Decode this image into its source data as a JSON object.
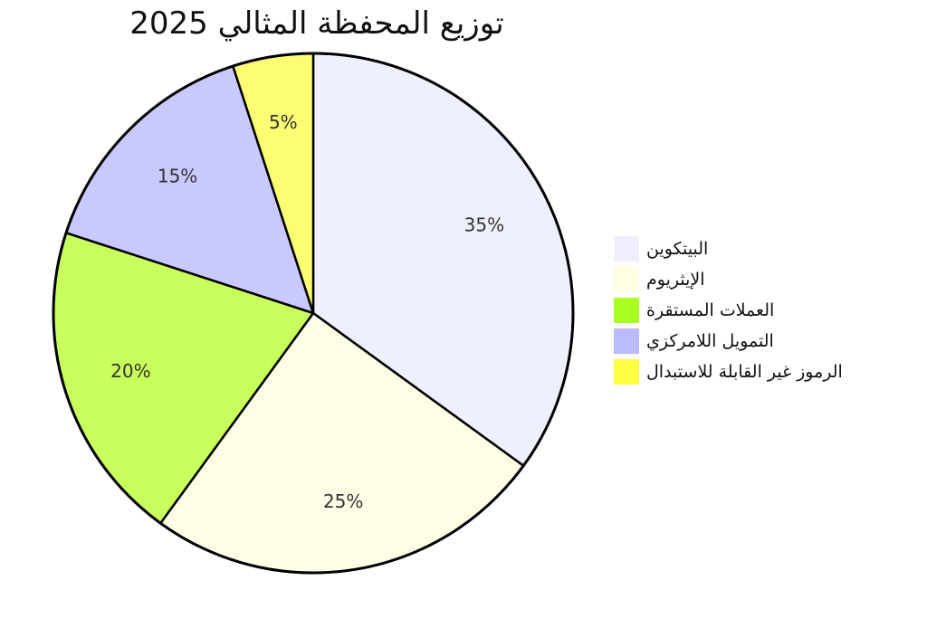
{
  "chart_data": {
    "type": "pie",
    "title": "توزيع المحفظة المثالي 2025",
    "categories": [
      "البيتكوين",
      "الإيثريوم",
      "العملات المستقرة",
      "التمويل اللامركزي",
      "الرموز غير القابلة للاستبدال"
    ],
    "values": [
      35,
      25,
      20,
      15,
      5
    ],
    "value_labels": [
      "35%",
      "25%",
      "20%",
      "15%",
      "5%"
    ],
    "colors": [
      "#eff0fd",
      "#fefee6",
      "#c9ff5c",
      "#c9c9ff",
      "#fbfd72"
    ],
    "legend_colors": [
      "#eeeefe",
      "#fefee3",
      "#aaff22",
      "#bbbbff",
      "#ffff44"
    ],
    "start_angle": "top",
    "direction": "clockwise",
    "legend_position": "right"
  }
}
